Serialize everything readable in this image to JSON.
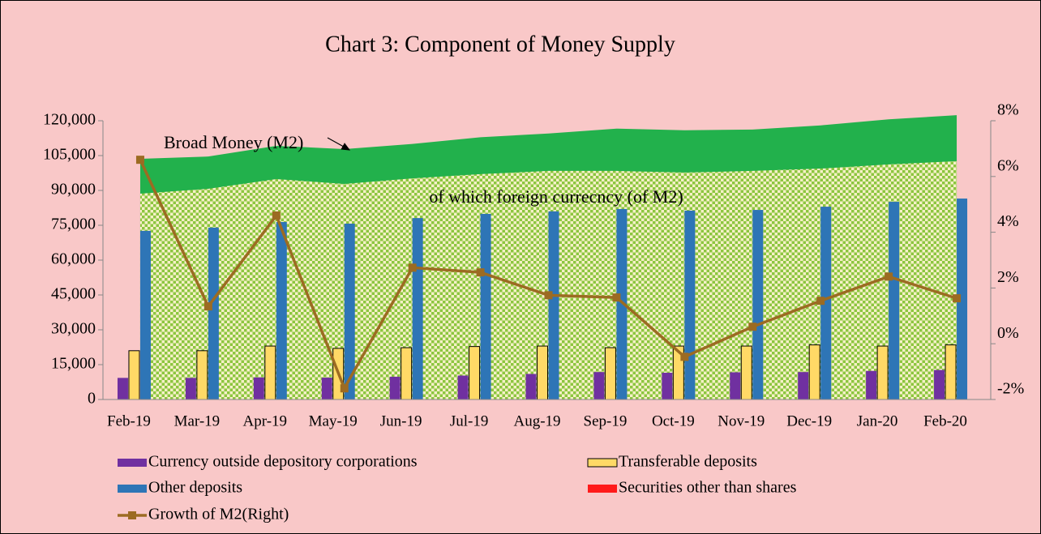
{
  "chart_data": {
    "type": "combo",
    "title": "Chart 3: Component of Money Supply",
    "annotations": [
      "Broad Money (M2)",
      "of which foreign currecncy (of M2)"
    ],
    "categories": [
      "Feb-19",
      "Mar-19",
      "Apr-19",
      "May-19",
      "Jun-19",
      "Jul-19",
      "Aug-19",
      "Sep-19",
      "Oct-19",
      "Nov-19",
      "Dec-19",
      "Jan-20",
      "Feb-20"
    ],
    "series": [
      {
        "name": "Broad Money (M2)",
        "type": "area",
        "color": "#22b14c",
        "values": [
          103600,
          104600,
          109200,
          107800,
          110000,
          112900,
          114500,
          116600,
          115900,
          116200,
          118000,
          120600,
          122400
        ]
      },
      {
        "name": "of which foreign currecncy (of M2)",
        "type": "area",
        "color": "#8cc63f",
        "values": [
          88600,
          90700,
          94900,
          92800,
          95200,
          97000,
          98400,
          98400,
          97700,
          98400,
          99400,
          101200,
          102600
        ]
      },
      {
        "name": "Currency outside depository corporations",
        "type": "bar",
        "color": "#7030a0",
        "values": [
          9300,
          9300,
          9500,
          9400,
          9800,
          10300,
          11000,
          11800,
          11500,
          11700,
          11800,
          12300,
          12700
        ]
      },
      {
        "name": "Transferable deposits",
        "type": "bar",
        "color": "#ffd966",
        "values": [
          21000,
          21000,
          23000,
          22000,
          22300,
          22800,
          23000,
          22300,
          23000,
          23000,
          23500,
          23000,
          23500
        ]
      },
      {
        "name": "Other deposits",
        "type": "bar",
        "color": "#2e75b6",
        "values": [
          72600,
          74000,
          76400,
          75700,
          78100,
          79900,
          81000,
          82000,
          81300,
          81600,
          83000,
          85100,
          86500
        ]
      },
      {
        "name": "Securities other than shares",
        "type": "bar",
        "color": "#ff1a1a",
        "values": [
          0,
          0,
          0,
          0,
          0,
          0,
          0,
          0,
          0,
          0,
          0,
          0,
          0
        ]
      },
      {
        "name": "Growth of M2(Right)",
        "type": "line",
        "color": "#9c6b22",
        "axis": "y2",
        "values": [
          6.6,
          1.34,
          4.6,
          -1.6,
          2.73,
          2.56,
          1.74,
          1.66,
          -0.47,
          0.61,
          1.54,
          2.41,
          1.63
        ]
      }
    ],
    "ylim": [
      0,
      120000
    ],
    "yticks": [
      {
        "value": 0,
        "label": "0"
      },
      {
        "value": 15000,
        "label": "15,000"
      },
      {
        "value": 30000,
        "label": "30,000"
      },
      {
        "value": 45000,
        "label": "45,000"
      },
      {
        "value": 60000,
        "label": "60,000"
      },
      {
        "value": 75000,
        "label": "75,000"
      },
      {
        "value": 90000,
        "label": "90,000"
      },
      {
        "value": 105000,
        "label": "105,000"
      },
      {
        "value": 120000,
        "label": "120,000"
      }
    ],
    "y2lim": [
      -2,
      8
    ],
    "y2ticks": [
      {
        "value": -2,
        "label": "-2%"
      },
      {
        "value": 0,
        "label": "0%"
      },
      {
        "value": 2,
        "label": "2%"
      },
      {
        "value": 4,
        "label": "4%"
      },
      {
        "value": 6,
        "label": "6%"
      },
      {
        "value": 8,
        "label": "8%"
      }
    ],
    "grid": false
  }
}
